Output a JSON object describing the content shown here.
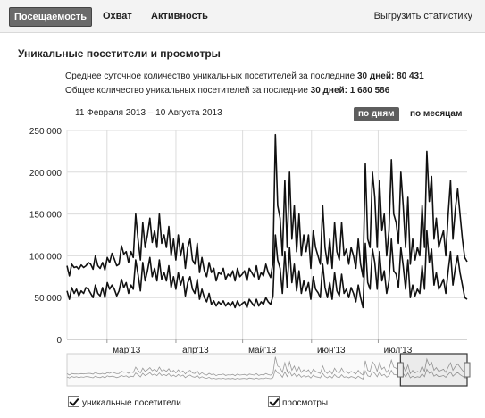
{
  "tabs": [
    {
      "label": "Посещаемость",
      "active": true
    },
    {
      "label": "Охват",
      "active": false
    },
    {
      "label": "Активность",
      "active": false
    }
  ],
  "export_label": "Выгрузить статистику",
  "section_title": "Уникальные посетители и просмотры",
  "summary": {
    "daily_prefix": "Среднее суточное количество уникальных посетителей за последние ",
    "daily_days": "30 дней:",
    "daily_value": "80 431",
    "total_prefix": "Общее количество уникальных посетителей за последние ",
    "total_days": "30 дней:",
    "total_value": "1 680 586"
  },
  "date_range": "11 Февраля 2013 – 10 Августа 2013",
  "period": {
    "by_day": "по дням",
    "by_month": "по месяцам",
    "selected": "by_day"
  },
  "legend": [
    {
      "label": "уникальные посетители",
      "checked": true
    },
    {
      "label": "просмотры",
      "checked": true
    }
  ],
  "colors": {
    "active_tab": "#6a6a6a",
    "series": "#111111",
    "grid": "#dcdcdc",
    "navigator_selection": "#333333"
  },
  "chart_data": {
    "type": "line",
    "y_ticks": [
      "250 000",
      "200 000",
      "150 000",
      "100 000",
      "50 000",
      "0"
    ],
    "ylim": [
      0,
      250000
    ],
    "x_tick_labels": [
      "мар'13",
      "апр'13",
      "май'13",
      "июн'13",
      "июл'13"
    ],
    "x_tick_days": [
      18,
      49,
      79,
      110,
      140
    ],
    "x_days_total": 180,
    "grid": true,
    "series": [
      {
        "name": "просмотры",
        "values": [
          88000,
          76000,
          90000,
          86000,
          87000,
          84000,
          89000,
          86000,
          88000,
          92000,
          90000,
          84000,
          100000,
          88000,
          85000,
          92000,
          83000,
          98000,
          92000,
          103000,
          96000,
          88000,
          90000,
          112000,
          102000,
          105000,
          92000,
          105000,
          98000,
          150000,
          120000,
          95000,
          140000,
          110000,
          125000,
          145000,
          116000,
          130000,
          110000,
          150000,
          115000,
          125000,
          110000,
          135000,
          100000,
          120000,
          95000,
          125000,
          100000,
          115000,
          85000,
          110000,
          120000,
          95000,
          90000,
          115000,
          80000,
          98000,
          82000,
          75000,
          92000,
          80000,
          85000,
          70000,
          80000,
          78000,
          85000,
          72000,
          78000,
          75000,
          82000,
          70000,
          85000,
          75000,
          78000,
          82000,
          70000,
          85000,
          80000,
          75000,
          88000,
          72000,
          80000,
          76000,
          90000,
          80000,
          74000,
          92000,
          245000,
          160000,
          145000,
          100000,
          190000,
          110000,
          200000,
          120000,
          160000,
          105000,
          150000,
          100000,
          125000,
          105000,
          125000,
          85000,
          130000,
          110000,
          100000,
          90000,
          160000,
          110000,
          90000,
          120000,
          85000,
          140000,
          105000,
          95000,
          140000,
          100000,
          108000,
          90000,
          110000,
          100000,
          85000,
          120000,
          90000,
          75000,
          210000,
          120000,
          110000,
          200000,
          170000,
          110000,
          190000,
          130000,
          150000,
          100000,
          130000,
          215000,
          150000,
          140000,
          115000,
          200000,
          160000,
          110000,
          170000,
          90000,
          120000,
          95000,
          110000,
          100000,
          160000,
          110000,
          225000,
          165000,
          195000,
          120000,
          145000,
          110000,
          120000,
          130000,
          100000,
          150000,
          190000,
          120000,
          155000,
          180000,
          150000,
          120000,
          98000,
          93000
        ]
      },
      {
        "name": "уникальные посетители",
        "values": [
          58000,
          48000,
          62000,
          55000,
          60000,
          52000,
          58000,
          55000,
          62000,
          60000,
          55000,
          50000,
          65000,
          55000,
          52000,
          62000,
          50000,
          68000,
          60000,
          65000,
          60000,
          52000,
          58000,
          72000,
          62000,
          68000,
          55000,
          65000,
          60000,
          95000,
          78000,
          58000,
          92000,
          70000,
          82000,
          98000,
          75000,
          85000,
          70000,
          95000,
          72000,
          80000,
          70000,
          88000,
          62000,
          75000,
          60000,
          80000,
          65000,
          75000,
          52000,
          68000,
          75000,
          60000,
          55000,
          72000,
          48000,
          60000,
          50000,
          45000,
          55000,
          42000,
          46000,
          40000,
          45000,
          42000,
          46000,
          40000,
          44000,
          40000,
          45000,
          38000,
          46000,
          40000,
          43000,
          45000,
          38000,
          48000,
          44000,
          40000,
          48000,
          40000,
          45000,
          42000,
          50000,
          45000,
          42000,
          52000,
          125000,
          95000,
          85000,
          55000,
          105000,
          62000,
          110000,
          68000,
          90000,
          58000,
          82000,
          55000,
          70000,
          58000,
          68000,
          48000,
          75000,
          60000,
          56000,
          50000,
          90000,
          62000,
          50000,
          68000,
          48000,
          80000,
          58000,
          52000,
          78000,
          55000,
          60000,
          50000,
          62000,
          55000,
          45000,
          65000,
          50000,
          38000,
          115000,
          68000,
          60000,
          108000,
          92000,
          60000,
          105000,
          70000,
          82000,
          55000,
          70000,
          120000,
          82000,
          78000,
          62000,
          110000,
          88000,
          60000,
          95000,
          50000,
          65000,
          52000,
          60000,
          55000,
          88000,
          60000,
          130000,
          92000,
          108000,
          65000,
          80000,
          60000,
          65000,
          72000,
          55000,
          82000,
          105000,
          65000,
          85000,
          100000,
          80000,
          65000,
          50000,
          48000
        ]
      }
    ],
    "navigator_selection_days": [
      150,
      180
    ]
  }
}
